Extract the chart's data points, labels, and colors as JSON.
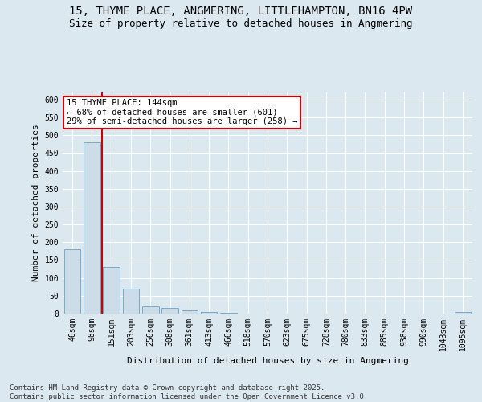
{
  "title1": "15, THYME PLACE, ANGMERING, LITTLEHAMPTON, BN16 4PW",
  "title2": "Size of property relative to detached houses in Angmering",
  "xlabel": "Distribution of detached houses by size in Angmering",
  "ylabel": "Number of detached properties",
  "categories": [
    "46sqm",
    "98sqm",
    "151sqm",
    "203sqm",
    "256sqm",
    "308sqm",
    "361sqm",
    "413sqm",
    "466sqm",
    "518sqm",
    "570sqm",
    "623sqm",
    "675sqm",
    "728sqm",
    "780sqm",
    "833sqm",
    "885sqm",
    "938sqm",
    "990sqm",
    "1043sqm",
    "1095sqm"
  ],
  "values": [
    180,
    480,
    130,
    70,
    20,
    15,
    8,
    5,
    3,
    0,
    0,
    0,
    0,
    0,
    0,
    0,
    0,
    0,
    0,
    0,
    5
  ],
  "bar_color": "#ccdce8",
  "bar_edge_color": "#7aaac8",
  "red_line_x": 1.5,
  "annotation_text": "15 THYME PLACE: 144sqm\n← 68% of detached houses are smaller (601)\n29% of semi-detached houses are larger (258) →",
  "annotation_box_color": "#ffffff",
  "annotation_box_edge": "#cc0000",
  "ylim": [
    0,
    620
  ],
  "yticks": [
    0,
    50,
    100,
    150,
    200,
    250,
    300,
    350,
    400,
    450,
    500,
    550,
    600
  ],
  "bg_color": "#dce8f0",
  "plot_bg_color": "#dce8f0",
  "footer_text": "Contains HM Land Registry data © Crown copyright and database right 2025.\nContains public sector information licensed under the Open Government Licence v3.0.",
  "title_fontsize": 10,
  "subtitle_fontsize": 9,
  "axis_label_fontsize": 8,
  "tick_fontsize": 7,
  "footer_fontsize": 6.5,
  "ann_fontsize": 7.5
}
